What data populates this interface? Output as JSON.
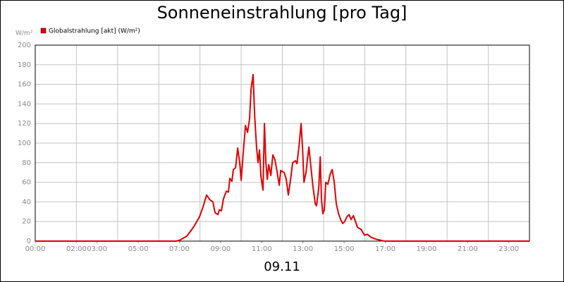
{
  "chart_data": {
    "type": "line",
    "title": "Sonneneinstrahlung [pro Tag]",
    "ylabel": "W/m²",
    "xlabel": "09.11",
    "xlim": [
      0,
      24
    ],
    "xticks": [
      {
        "value": 0,
        "label": "00:00"
      },
      {
        "value": 2,
        "label": "02:00"
      },
      {
        "value": 3,
        "label": "03:00"
      },
      {
        "value": 5,
        "label": "05:00"
      },
      {
        "value": 7,
        "label": "07:00"
      },
      {
        "value": 9,
        "label": "09:00"
      },
      {
        "value": 11,
        "label": "11:00"
      },
      {
        "value": 13,
        "label": "13:00"
      },
      {
        "value": 15,
        "label": "15:00"
      },
      {
        "value": 17,
        "label": "17:00"
      },
      {
        "value": 19,
        "label": "19:00"
      },
      {
        "value": 21,
        "label": "21:00"
      },
      {
        "value": 23,
        "label": "23:00"
      }
    ],
    "xgrid": [
      2,
      4,
      6,
      8,
      10,
      12,
      14,
      16,
      18,
      20,
      22
    ],
    "ylim": [
      0,
      200
    ],
    "yticks": [
      0,
      20,
      40,
      60,
      80,
      100,
      120,
      140,
      160,
      180,
      200
    ],
    "grid": true,
    "legend": "top-left",
    "series": [
      {
        "name": "Globalstrahlung [akt] (W/m²)",
        "color": "#e00000",
        "x": [
          0,
          6.85,
          7.02,
          7.36,
          7.71,
          7.98,
          8.15,
          8.32,
          8.49,
          8.63,
          8.73,
          8.87,
          8.94,
          9.04,
          9.14,
          9.28,
          9.38,
          9.45,
          9.55,
          9.62,
          9.73,
          9.83,
          9.93,
          10.0,
          10.1,
          10.21,
          10.31,
          10.41,
          10.48,
          10.58,
          10.65,
          10.75,
          10.82,
          10.89,
          10.96,
          11.06,
          11.13,
          11.2,
          11.27,
          11.34,
          11.44,
          11.54,
          11.64,
          11.75,
          11.85,
          11.92,
          12.09,
          12.19,
          12.29,
          12.4,
          12.5,
          12.64,
          12.71,
          12.81,
          12.91,
          12.98,
          13.05,
          13.15,
          13.22,
          13.29,
          13.39,
          13.49,
          13.6,
          13.66,
          13.77,
          13.84,
          13.9,
          13.97,
          14.04,
          14.11,
          14.21,
          14.32,
          14.42,
          14.52,
          14.62,
          14.73,
          14.83,
          14.93,
          15.03,
          15.14,
          15.24,
          15.34,
          15.45,
          15.55,
          15.65,
          15.82,
          15.99,
          16.13,
          16.3,
          16.54,
          16.95,
          24
        ],
        "values": [
          0,
          0,
          1,
          5,
          15,
          25,
          35,
          47,
          42,
          40,
          29,
          27,
          32,
          31,
          43,
          51,
          50,
          64,
          61,
          73,
          75,
          95,
          80,
          62,
          90,
          118,
          111,
          125,
          155,
          170,
          130,
          95,
          80,
          93,
          66,
          52,
          120,
          80,
          63,
          78,
          67,
          88,
          83,
          70,
          57,
          72,
          70,
          63,
          47,
          63,
          80,
          82,
          79,
          97,
          120,
          95,
          60,
          70,
          84,
          96,
          75,
          55,
          38,
          36,
          55,
          86,
          42,
          28,
          32,
          60,
          58,
          68,
          73,
          60,
          38,
          28,
          22,
          18,
          20,
          25,
          27,
          22,
          26,
          20,
          14,
          12,
          6,
          7,
          4,
          2,
          0,
          0
        ]
      }
    ]
  }
}
